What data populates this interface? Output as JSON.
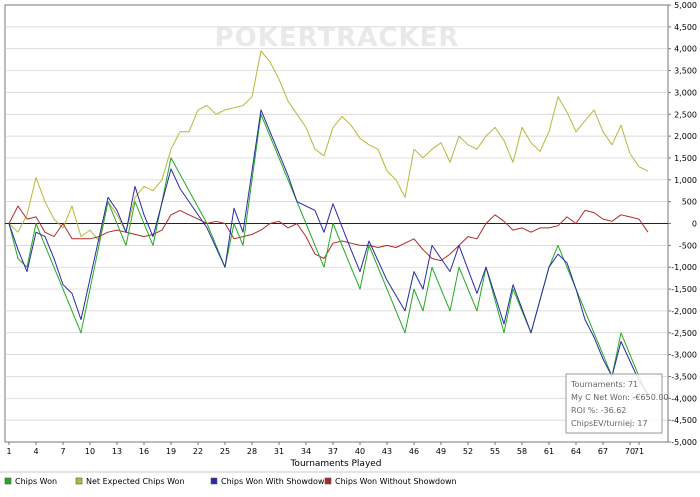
{
  "chart_data": {
    "type": "line",
    "title": "",
    "watermark": "POKERTRACKER",
    "xlabel": "Tournaments Played",
    "ylabel": "",
    "xlim": [
      0,
      72
    ],
    "ylim": [
      -5000,
      5000
    ],
    "y_ticks": [
      "5,000",
      "4,500",
      "4,000",
      "3,500",
      "3,000",
      "2,500",
      "2,000",
      "1,500",
      "1,000",
      "500",
      "0",
      "-500",
      "-1,000",
      "-1,500",
      "-2,000",
      "-2,500",
      "-3,000",
      "-3,500",
      "-4,000",
      "-4,500",
      "-5,000"
    ],
    "x_ticks": [
      "1",
      "4",
      "7",
      "10",
      "13",
      "16",
      "19",
      "22",
      "25",
      "28",
      "31",
      "34",
      "37",
      "40",
      "43",
      "46",
      "49",
      "52",
      "55",
      "58",
      "61",
      "64",
      "67",
      "70",
      "71"
    ],
    "grid": true,
    "legend_position": "bottom",
    "series": [
      {
        "name": "Chips Won",
        "color": "#22aa22",
        "points": [
          [
            0,
            0
          ],
          [
            1,
            -800
          ],
          [
            2,
            -1000
          ],
          [
            3,
            0
          ],
          [
            4,
            -500
          ],
          [
            6,
            -1500
          ],
          [
            8,
            -2500
          ],
          [
            11,
            500
          ],
          [
            13,
            -500
          ],
          [
            14,
            500
          ],
          [
            16,
            -500
          ],
          [
            18,
            1500
          ],
          [
            22,
            0
          ],
          [
            24,
            -1000
          ],
          [
            25,
            0
          ],
          [
            26,
            -500
          ],
          [
            28,
            2500
          ],
          [
            30,
            1500
          ],
          [
            32,
            500
          ],
          [
            33,
            0
          ],
          [
            34,
            -500
          ],
          [
            35,
            -1000
          ],
          [
            36,
            0
          ],
          [
            38,
            -1000
          ],
          [
            39,
            -1500
          ],
          [
            40,
            -500
          ],
          [
            42,
            -1500
          ],
          [
            44,
            -2500
          ],
          [
            45,
            -1500
          ],
          [
            46,
            -2000
          ],
          [
            47,
            -1000
          ],
          [
            48,
            -1500
          ],
          [
            49,
            -2000
          ],
          [
            50,
            -1000
          ],
          [
            52,
            -2000
          ],
          [
            53,
            -1000
          ],
          [
            55,
            -2500
          ],
          [
            56,
            -1500
          ],
          [
            58,
            -2500
          ],
          [
            60,
            -1000
          ],
          [
            61,
            -500
          ],
          [
            62,
            -1000
          ],
          [
            63,
            -1500
          ],
          [
            64,
            -2000
          ],
          [
            65,
            -2500
          ],
          [
            66,
            -3000
          ],
          [
            67,
            -3500
          ],
          [
            68,
            -2500
          ],
          [
            70,
            -3500
          ],
          [
            71,
            -4000
          ]
        ]
      },
      {
        "name": "Net Expected Chips Won",
        "color": "#b7b73a",
        "points": [
          [
            0,
            0
          ],
          [
            1,
            -200
          ],
          [
            2,
            200
          ],
          [
            3,
            1050
          ],
          [
            4,
            500
          ],
          [
            5,
            100
          ],
          [
            6,
            -100
          ],
          [
            7,
            400
          ],
          [
            8,
            -300
          ],
          [
            9,
            -150
          ],
          [
            10,
            -400
          ],
          [
            11,
            500
          ],
          [
            12,
            200
          ],
          [
            13,
            -200
          ],
          [
            14,
            600
          ],
          [
            15,
            850
          ],
          [
            16,
            750
          ],
          [
            17,
            1000
          ],
          [
            18,
            1700
          ],
          [
            19,
            2100
          ],
          [
            20,
            2100
          ],
          [
            21,
            2600
          ],
          [
            22,
            2700
          ],
          [
            23,
            2500
          ],
          [
            24,
            2600
          ],
          [
            25,
            2650
          ],
          [
            26,
            2700
          ],
          [
            27,
            2900
          ],
          [
            28,
            3950
          ],
          [
            29,
            3700
          ],
          [
            30,
            3300
          ],
          [
            31,
            2800
          ],
          [
            32,
            2500
          ],
          [
            33,
            2200
          ],
          [
            34,
            1700
          ],
          [
            35,
            1550
          ],
          [
            36,
            2200
          ],
          [
            37,
            2450
          ],
          [
            38,
            2250
          ],
          [
            39,
            1950
          ],
          [
            40,
            1800
          ],
          [
            41,
            1700
          ],
          [
            42,
            1200
          ],
          [
            43,
            1000
          ],
          [
            44,
            600
          ],
          [
            45,
            1700
          ],
          [
            46,
            1500
          ],
          [
            47,
            1700
          ],
          [
            48,
            1850
          ],
          [
            49,
            1400
          ],
          [
            50,
            2000
          ],
          [
            51,
            1800
          ],
          [
            52,
            1700
          ],
          [
            53,
            2000
          ],
          [
            54,
            2200
          ],
          [
            55,
            1900
          ],
          [
            56,
            1400
          ],
          [
            57,
            2200
          ],
          [
            58,
            1850
          ],
          [
            59,
            1650
          ],
          [
            60,
            2100
          ],
          [
            61,
            2900
          ],
          [
            62,
            2550
          ],
          [
            63,
            2100
          ],
          [
            64,
            2350
          ],
          [
            65,
            2600
          ],
          [
            66,
            2100
          ],
          [
            67,
            1800
          ],
          [
            68,
            2250
          ],
          [
            69,
            1600
          ],
          [
            70,
            1300
          ],
          [
            71,
            1200
          ]
        ]
      },
      {
        "name": "Chips Won With Showdown",
        "color": "#2a2aa8",
        "points": [
          [
            0,
            0
          ],
          [
            1,
            -600
          ],
          [
            2,
            -1100
          ],
          [
            3,
            -200
          ],
          [
            4,
            -300
          ],
          [
            5,
            -800
          ],
          [
            6,
            -1400
          ],
          [
            7,
            -1600
          ],
          [
            8,
            -2200
          ],
          [
            11,
            600
          ],
          [
            12,
            300
          ],
          [
            13,
            -200
          ],
          [
            14,
            850
          ],
          [
            15,
            200
          ],
          [
            16,
            -300
          ],
          [
            18,
            1250
          ],
          [
            19,
            800
          ],
          [
            22,
            -100
          ],
          [
            24,
            -1000
          ],
          [
            25,
            350
          ],
          [
            26,
            -200
          ],
          [
            28,
            2600
          ],
          [
            30,
            1600
          ],
          [
            31,
            1100
          ],
          [
            32,
            500
          ],
          [
            33,
            400
          ],
          [
            34,
            300
          ],
          [
            35,
            -200
          ],
          [
            36,
            450
          ],
          [
            38,
            -600
          ],
          [
            39,
            -1100
          ],
          [
            40,
            -400
          ],
          [
            42,
            -1300
          ],
          [
            44,
            -2000
          ],
          [
            45,
            -1100
          ],
          [
            46,
            -1500
          ],
          [
            47,
            -500
          ],
          [
            48,
            -800
          ],
          [
            49,
            -1100
          ],
          [
            50,
            -500
          ],
          [
            52,
            -1600
          ],
          [
            53,
            -1000
          ],
          [
            55,
            -2300
          ],
          [
            56,
            -1400
          ],
          [
            58,
            -2500
          ],
          [
            60,
            -1000
          ],
          [
            61,
            -700
          ],
          [
            62,
            -900
          ],
          [
            63,
            -1500
          ],
          [
            64,
            -2200
          ],
          [
            65,
            -2600
          ],
          [
            66,
            -3100
          ],
          [
            67,
            -3500
          ],
          [
            68,
            -2700
          ],
          [
            70,
            -3600
          ],
          [
            71,
            -3900
          ]
        ]
      },
      {
        "name": "Chips Won Without Showdown",
        "color": "#b02a2a",
        "points": [
          [
            0,
            0
          ],
          [
            1,
            400
          ],
          [
            2,
            100
          ],
          [
            3,
            150
          ],
          [
            4,
            -200
          ],
          [
            5,
            -300
          ],
          [
            6,
            0
          ],
          [
            7,
            -350
          ],
          [
            8,
            -350
          ],
          [
            9,
            -350
          ],
          [
            10,
            -300
          ],
          [
            11,
            -200
          ],
          [
            12,
            -150
          ],
          [
            13,
            -200
          ],
          [
            14,
            -250
          ],
          [
            15,
            -300
          ],
          [
            16,
            -250
          ],
          [
            17,
            -150
          ],
          [
            18,
            200
          ],
          [
            19,
            300
          ],
          [
            20,
            200
          ],
          [
            21,
            100
          ],
          [
            22,
            0
          ],
          [
            23,
            50
          ],
          [
            24,
            0
          ],
          [
            25,
            -350
          ],
          [
            26,
            -300
          ],
          [
            27,
            -250
          ],
          [
            28,
            -150
          ],
          [
            29,
            0
          ],
          [
            30,
            50
          ],
          [
            31,
            -100
          ],
          [
            32,
            0
          ],
          [
            33,
            -300
          ],
          [
            34,
            -700
          ],
          [
            35,
            -800
          ],
          [
            36,
            -450
          ],
          [
            37,
            -400
          ],
          [
            38,
            -450
          ],
          [
            39,
            -500
          ],
          [
            40,
            -500
          ],
          [
            41,
            -550
          ],
          [
            42,
            -500
          ],
          [
            43,
            -550
          ],
          [
            44,
            -450
          ],
          [
            45,
            -350
          ],
          [
            46,
            -600
          ],
          [
            47,
            -800
          ],
          [
            48,
            -850
          ],
          [
            49,
            -700
          ],
          [
            50,
            -500
          ],
          [
            51,
            -300
          ],
          [
            52,
            -350
          ],
          [
            53,
            0
          ],
          [
            54,
            200
          ],
          [
            55,
            50
          ],
          [
            56,
            -150
          ],
          [
            57,
            -100
          ],
          [
            58,
            -200
          ],
          [
            59,
            -100
          ],
          [
            60,
            -100
          ],
          [
            61,
            -50
          ],
          [
            62,
            150
          ],
          [
            63,
            0
          ],
          [
            64,
            300
          ],
          [
            65,
            250
          ],
          [
            66,
            100
          ],
          [
            67,
            50
          ],
          [
            68,
            200
          ],
          [
            69,
            150
          ],
          [
            70,
            100
          ],
          [
            71,
            -200
          ]
        ]
      }
    ],
    "annotation": {
      "lines": [
        "Tournaments: 71",
        "My C Net Won: -€650.00",
        "ROI %: -36.62",
        "ChipsEV/turniej: 17"
      ]
    }
  }
}
